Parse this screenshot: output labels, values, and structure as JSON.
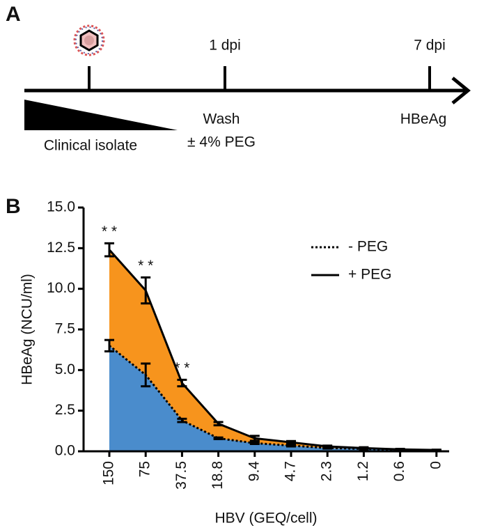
{
  "panel_a": {
    "label": "A",
    "timepoints": [
      "1 dpi",
      "7 dpi"
    ],
    "inoculum": "Clinical isolate",
    "wash": "Wash",
    "peg": "± 4% PEG",
    "readout": "HBeAg"
  },
  "chart_data": {
    "type": "area",
    "panel_label": "B",
    "x_label": "HBV (GEQ/cell)",
    "y_label": "HBeAg (NCU/ml)",
    "categories": [
      "150",
      "75",
      "37.5",
      "18.8",
      "9.4",
      "4.7",
      "2.3",
      "1.2",
      "0.6",
      "0"
    ],
    "series": [
      {
        "name": "+ PEG",
        "color": "#f7941d",
        "line_style": "solid",
        "values": [
          12.4,
          9.9,
          4.2,
          1.7,
          0.8,
          0.55,
          0.3,
          0.2,
          0.12,
          0.08
        ],
        "errors": [
          0.4,
          0.8,
          0.2,
          0.1,
          0.15,
          0.08,
          0.05,
          0.05,
          0.03,
          0.02
        ]
      },
      {
        "name": "- PEG",
        "color": "#4a8ccc",
        "line_style": "dotted",
        "values": [
          6.5,
          4.7,
          1.9,
          0.8,
          0.5,
          0.35,
          0.2,
          0.15,
          0.1,
          0.05
        ],
        "errors": [
          0.35,
          0.7,
          0.1,
          0.05,
          0.05,
          0.05,
          0.03,
          0.03,
          0.02,
          0.02
        ]
      }
    ],
    "annotations": [
      "* *",
      "* *",
      "* *"
    ],
    "ylim": [
      0,
      15
    ],
    "yticks": [
      {
        "value": 0,
        "label": "0.0"
      },
      {
        "value": 2.5,
        "label": "2.5"
      },
      {
        "value": 5,
        "label": "5.0"
      },
      {
        "value": 7.5,
        "label": "7.5"
      },
      {
        "value": 10,
        "label": "10.0"
      },
      {
        "value": 12.5,
        "label": "12.5"
      },
      {
        "value": 15,
        "label": "15.0"
      }
    ],
    "grid": false,
    "legend": "upper right"
  }
}
